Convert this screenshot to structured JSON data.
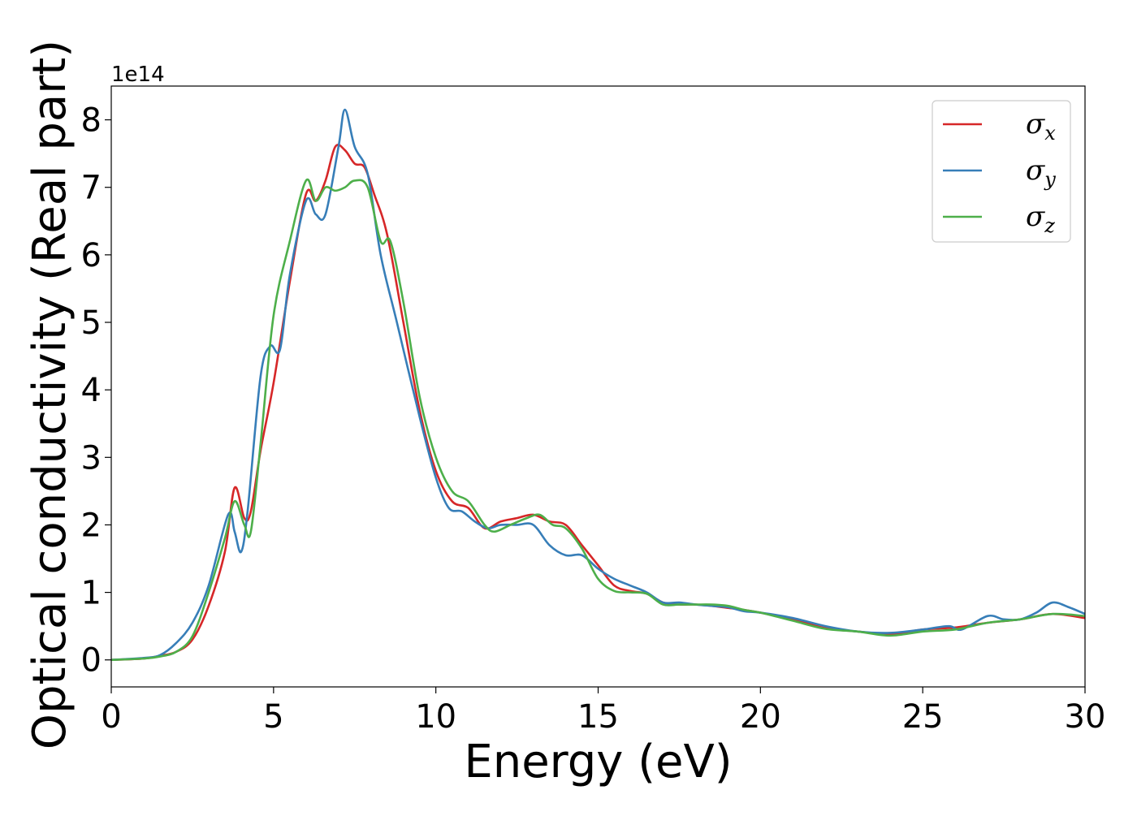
{
  "chart_data": {
    "type": "line",
    "title": "",
    "xlabel": "Energy (eV)",
    "ylabel": "Optical conductivity (Real part)",
    "y_offset_label": "1e14",
    "xlim": [
      0,
      30
    ],
    "ylim": [
      -0.4,
      8.5
    ],
    "xticks": [
      0,
      5,
      10,
      15,
      20,
      25,
      30
    ],
    "yticks": [
      0,
      1,
      2,
      3,
      4,
      5,
      6,
      7,
      8
    ],
    "grid": false,
    "legend_position": "top-right",
    "series": [
      {
        "name": "σx",
        "symbol": "σ",
        "subscript": "x",
        "color": "#d62728",
        "x": [
          0,
          1,
          1.5,
          2,
          2.5,
          3,
          3.5,
          3.8,
          4.1,
          4.3,
          4.6,
          5,
          5.5,
          6,
          6.3,
          6.6,
          6.9,
          7.2,
          7.5,
          7.8,
          8.1,
          8.5,
          9,
          9.5,
          10,
          10.5,
          11,
          11.5,
          12,
          12.5,
          13,
          13.5,
          14,
          14.5,
          15,
          15.5,
          16,
          16.5,
          17,
          17.5,
          18,
          18.5,
          19,
          19.5,
          20,
          21,
          22,
          23,
          24,
          25,
          26,
          27,
          28,
          29,
          30
        ],
        "values": [
          0,
          0.02,
          0.06,
          0.12,
          0.3,
          0.8,
          1.6,
          2.55,
          2.1,
          2.2,
          3.1,
          4.1,
          5.6,
          6.9,
          6.8,
          7.1,
          7.6,
          7.55,
          7.35,
          7.3,
          6.9,
          6.3,
          5.0,
          3.7,
          2.8,
          2.35,
          2.25,
          1.95,
          2.05,
          2.1,
          2.15,
          2.05,
          2.0,
          1.7,
          1.4,
          1.1,
          1.02,
          0.98,
          0.85,
          0.82,
          0.82,
          0.8,
          0.77,
          0.74,
          0.7,
          0.6,
          0.47,
          0.42,
          0.38,
          0.45,
          0.48,
          0.55,
          0.6,
          0.68,
          0.62
        ]
      },
      {
        "name": "σy",
        "symbol": "σ",
        "subscript": "y",
        "color": "#377eb8",
        "x": [
          0,
          1,
          1.5,
          2,
          2.5,
          3,
          3.6,
          3.8,
          4.0,
          4.2,
          4.6,
          4.9,
          5.2,
          5.5,
          6.0,
          6.3,
          6.6,
          7.0,
          7.2,
          7.5,
          7.9,
          8.3,
          8.8,
          9.5,
          10,
          10.4,
          10.8,
          11.2,
          11.6,
          12,
          12.5,
          13,
          13.5,
          14,
          14.5,
          15,
          15.5,
          16,
          16.5,
          17,
          17.5,
          18,
          18.5,
          19,
          19.5,
          20,
          21,
          22,
          23,
          24,
          25,
          25.8,
          26.2,
          27,
          27.5,
          28,
          28.5,
          29,
          29.5,
          30
        ],
        "values": [
          0,
          0.03,
          0.07,
          0.25,
          0.55,
          1.1,
          2.15,
          1.9,
          1.6,
          2.2,
          4.2,
          4.65,
          4.6,
          5.7,
          6.8,
          6.6,
          6.6,
          7.6,
          8.15,
          7.6,
          7.2,
          6.0,
          5.0,
          3.6,
          2.7,
          2.25,
          2.2,
          2.05,
          1.95,
          2.0,
          2.0,
          2.0,
          1.7,
          1.55,
          1.55,
          1.35,
          1.2,
          1.1,
          1.0,
          0.85,
          0.85,
          0.82,
          0.8,
          0.78,
          0.72,
          0.7,
          0.62,
          0.5,
          0.42,
          0.4,
          0.45,
          0.5,
          0.45,
          0.65,
          0.6,
          0.6,
          0.7,
          0.85,
          0.78,
          0.68
        ]
      },
      {
        "name": "σz",
        "symbol": "σ",
        "subscript": "z",
        "color": "#4daf4a",
        "x": [
          0,
          1,
          1.5,
          2,
          2.5,
          3,
          3.5,
          3.8,
          4.1,
          4.3,
          4.6,
          5,
          5.5,
          6.0,
          6.3,
          6.6,
          6.9,
          7.2,
          7.5,
          7.9,
          8.3,
          8.6,
          9,
          9.5,
          10,
          10.5,
          11,
          11.5,
          11.8,
          12.3,
          12.8,
          13.2,
          13.6,
          14,
          14.5,
          15,
          15.5,
          16,
          16.5,
          17,
          17.5,
          18,
          18.5,
          19,
          19.5,
          20,
          21,
          22,
          23,
          24,
          25,
          26,
          27,
          28,
          29,
          30
        ],
        "values": [
          0,
          0.02,
          0.05,
          0.12,
          0.35,
          1.0,
          1.8,
          2.35,
          2.0,
          1.9,
          3.2,
          5.1,
          6.2,
          7.1,
          6.8,
          7.0,
          6.95,
          7.0,
          7.1,
          7.0,
          6.2,
          6.2,
          5.3,
          3.9,
          3.0,
          2.5,
          2.35,
          2.0,
          1.9,
          2.0,
          2.1,
          2.15,
          2.0,
          1.95,
          1.65,
          1.2,
          1.02,
          1.0,
          0.98,
          0.82,
          0.82,
          0.82,
          0.82,
          0.8,
          0.74,
          0.7,
          0.58,
          0.46,
          0.42,
          0.36,
          0.42,
          0.45,
          0.55,
          0.6,
          0.68,
          0.65
        ]
      }
    ]
  }
}
